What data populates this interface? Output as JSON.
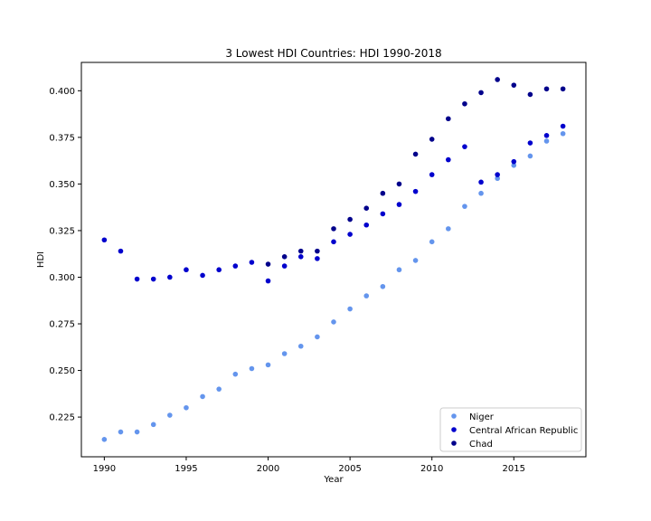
{
  "chart_data": {
    "type": "scatter",
    "title": "3 Lowest HDI Countries: HDI 1990-2018",
    "xlabel": "Year",
    "ylabel": "HDI",
    "xlim": [
      1988.6,
      2019.4
    ],
    "ylim": [
      0.2037,
      0.4152
    ],
    "xticks": [
      1990,
      1995,
      2000,
      2005,
      2010,
      2015
    ],
    "xtick_labels": [
      "1990",
      "1995",
      "2000",
      "2005",
      "2010",
      "2015"
    ],
    "yticks": [
      0.225,
      0.25,
      0.275,
      0.3,
      0.325,
      0.35,
      0.375,
      0.4
    ],
    "ytick_labels": [
      "0.225",
      "0.250",
      "0.275",
      "0.300",
      "0.325",
      "0.350",
      "0.375",
      "0.400"
    ],
    "grid": false,
    "legend_position": "lower-right",
    "series": [
      {
        "name": "Niger",
        "color": "#6495ED",
        "x": [
          1990,
          1991,
          1992,
          1993,
          1994,
          1995,
          1996,
          1997,
          1998,
          1999,
          2000,
          2001,
          2002,
          2003,
          2004,
          2005,
          2006,
          2007,
          2008,
          2009,
          2010,
          2011,
          2012,
          2013,
          2014,
          2015,
          2016,
          2017,
          2018
        ],
        "y": [
          0.213,
          0.217,
          0.217,
          0.221,
          0.226,
          0.23,
          0.236,
          0.24,
          0.248,
          0.251,
          0.253,
          0.259,
          0.263,
          0.268,
          0.276,
          0.283,
          0.29,
          0.295,
          0.304,
          0.309,
          0.319,
          0.326,
          0.338,
          0.345,
          0.353,
          0.36,
          0.365,
          0.373,
          0.377
        ]
      },
      {
        "name": "Central African Republic",
        "color": "#0000CD",
        "x": [
          1990,
          1991,
          1992,
          1993,
          1994,
          1995,
          1996,
          1997,
          1998,
          1999,
          2000,
          2001,
          2002,
          2003,
          2004,
          2005,
          2006,
          2007,
          2008,
          2009,
          2010,
          2011,
          2012,
          2013,
          2014,
          2015,
          2016,
          2017,
          2018
        ],
        "y": [
          0.32,
          0.314,
          0.299,
          0.299,
          0.3,
          0.304,
          0.301,
          0.304,
          0.306,
          0.308,
          0.298,
          0.306,
          0.311,
          0.31,
          0.319,
          0.323,
          0.328,
          0.334,
          0.339,
          0.346,
          0.355,
          0.363,
          0.37,
          0.351,
          0.355,
          0.362,
          0.372,
          0.376,
          0.381
        ]
      },
      {
        "name": "Chad",
        "color": "#00008B",
        "x": [
          2000,
          2001,
          2002,
          2003,
          2004,
          2005,
          2006,
          2007,
          2008,
          2009,
          2010,
          2011,
          2012,
          2013,
          2014,
          2015,
          2016,
          2017,
          2018
        ],
        "y": [
          0.307,
          0.311,
          0.314,
          0.314,
          0.326,
          0.331,
          0.337,
          0.345,
          0.35,
          0.366,
          0.374,
          0.385,
          0.393,
          0.399,
          0.406,
          0.403,
          0.398,
          0.401,
          0.401
        ]
      }
    ]
  }
}
